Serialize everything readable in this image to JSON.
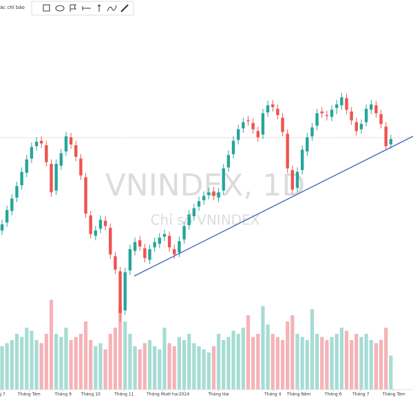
{
  "toolbar": {
    "label": "ác chỉ báo"
  },
  "chart_data": {
    "type": "candlestick",
    "title": "VNINDEX, 1D",
    "subtitle": "Chỉ số VNINDEX",
    "up_color": "#26a69a",
    "down_color": "#ef5350",
    "volume_up_color": "#a6dcd4",
    "volume_down_color": "#f5b3b7",
    "xlim": [
      -0.42,
      83.5
    ],
    "ylim": [
      1000,
      1300
    ],
    "volume_lim": [
      0,
      1500
    ],
    "xticks": [
      {
        "value": 0,
        "label": "g 7"
      },
      {
        "value": 5.5,
        "label": "Tháng Tám"
      },
      {
        "value": 12.4,
        "label": "Tháng 9"
      },
      {
        "value": 18,
        "label": "Tháng 10"
      },
      {
        "value": 24.8,
        "label": "Tháng 11"
      },
      {
        "value": 32.6,
        "label": "Tháng Mười hai"
      },
      {
        "value": 37,
        "label": "2024"
      },
      {
        "value": 44,
        "label": "Tháng Hai"
      },
      {
        "value": 55,
        "label": "Tháng 4"
      },
      {
        "value": 60.3,
        "label": "Tháng Năm"
      },
      {
        "value": 67.3,
        "label": "Tháng 6"
      },
      {
        "value": 72.9,
        "label": "Tháng 7"
      },
      {
        "value": 79.6,
        "label": "Tháng Tám"
      }
    ],
    "open": [
      1135,
      1144,
      1157,
      1172,
      1186,
      1200,
      1216,
      1230,
      1236,
      1231,
      1210,
      1180,
      1208,
      1224,
      1240,
      1231,
      1216,
      1195,
      1152,
      1129,
      1137,
      1146,
      1138,
      1106,
      1089,
      1045,
      1090,
      1112,
      1124,
      1115,
      1102,
      1116,
      1120,
      1128,
      1129,
      1114,
      1110,
      1125,
      1141,
      1151,
      1162,
      1169,
      1175,
      1179,
      1172,
      1180,
      1206,
      1221,
      1237,
      1250,
      1259,
      1256,
      1247,
      1243,
      1268,
      1277,
      1272,
      1262,
      1244,
      1203,
      1183,
      1203,
      1224,
      1241,
      1253,
      1269,
      1265,
      1263,
      1273,
      1276,
      1284,
      1269,
      1257,
      1249,
      1257,
      1271,
      1276,
      1266,
      1252,
      1232
    ],
    "high": [
      1147,
      1163,
      1176,
      1190,
      1206,
      1220,
      1234,
      1240,
      1241,
      1236,
      1215,
      1215,
      1227,
      1246,
      1245,
      1236,
      1221,
      1200,
      1157,
      1140,
      1152,
      1151,
      1143,
      1111,
      1094,
      1093,
      1119,
      1127,
      1129,
      1120,
      1119,
      1127,
      1132,
      1136,
      1134,
      1119,
      1128,
      1145,
      1158,
      1165,
      1173,
      1179,
      1183,
      1184,
      1183,
      1210,
      1225,
      1241,
      1254,
      1262,
      1264,
      1261,
      1252,
      1272,
      1281,
      1282,
      1277,
      1267,
      1249,
      1208,
      1206,
      1231,
      1245,
      1256,
      1272,
      1274,
      1270,
      1276,
      1282,
      1290,
      1289,
      1274,
      1262,
      1260,
      1277,
      1282,
      1281,
      1271,
      1257,
      1243
    ],
    "low": [
      1130,
      1139,
      1152,
      1167,
      1181,
      1195,
      1211,
      1225,
      1228,
      1207,
      1173,
      1175,
      1203,
      1219,
      1227,
      1213,
      1192,
      1149,
      1126,
      1124,
      1132,
      1135,
      1103,
      1086,
      1032,
      1040,
      1085,
      1107,
      1112,
      1099,
      1097,
      1111,
      1115,
      1123,
      1111,
      1103,
      1105,
      1120,
      1136,
      1146,
      1157,
      1164,
      1170,
      1169,
      1167,
      1175,
      1201,
      1216,
      1232,
      1245,
      1253,
      1244,
      1235,
      1238,
      1263,
      1269,
      1260,
      1241,
      1200,
      1176,
      1178,
      1198,
      1219,
      1236,
      1248,
      1262,
      1259,
      1258,
      1266,
      1271,
      1266,
      1254,
      1242,
      1244,
      1252,
      1266,
      1262,
      1250,
      1225,
      1227
    ],
    "close": [
      1142,
      1158,
      1171,
      1185,
      1201,
      1215,
      1229,
      1235,
      1233,
      1212,
      1178,
      1210,
      1222,
      1241,
      1232,
      1218,
      1197,
      1154,
      1131,
      1135,
      1147,
      1140,
      1108,
      1091,
      1042,
      1088,
      1114,
      1122,
      1117,
      1104,
      1114,
      1122,
      1127,
      1131,
      1116,
      1108,
      1123,
      1140,
      1153,
      1160,
      1168,
      1174,
      1178,
      1174,
      1178,
      1205,
      1220,
      1236,
      1249,
      1257,
      1258,
      1249,
      1240,
      1267,
      1276,
      1274,
      1265,
      1246,
      1205,
      1181,
      1201,
      1226,
      1240,
      1251,
      1267,
      1267,
      1264,
      1271,
      1277,
      1285,
      1271,
      1259,
      1247,
      1255,
      1272,
      1277,
      1267,
      1255,
      1230,
      1238
    ],
    "volume": [
      700,
      750,
      800,
      900,
      850,
      1000,
      950,
      800,
      750,
      900,
      1450,
      900,
      850,
      1000,
      800,
      850,
      900,
      1100,
      800,
      700,
      750,
      650,
      900,
      1000,
      1350,
      1100,
      900,
      700,
      650,
      750,
      800,
      700,
      650,
      1000,
      750,
      700,
      850,
      800,
      900,
      750,
      700,
      650,
      600,
      700,
      900,
      800,
      850,
      950,
      900,
      1000,
      1200,
      850,
      900,
      1350,
      1050,
      900,
      850,
      800,
      1100,
      1200,
      900,
      850,
      800,
      1300,
      900,
      850,
      800,
      850,
      900,
      1000,
      950,
      800,
      900,
      850,
      900,
      800,
      750,
      800,
      1000,
      550
    ]
  }
}
